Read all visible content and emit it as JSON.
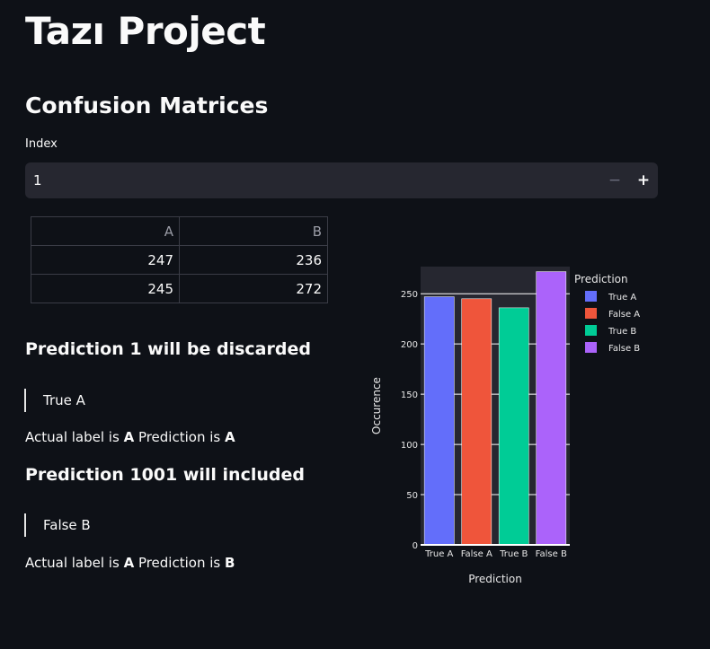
{
  "app": {
    "title": "Tazı Project"
  },
  "section": {
    "title": "Confusion Matrices"
  },
  "index_input": {
    "label": "Index",
    "value": "1",
    "minus": "−",
    "plus": "+"
  },
  "matrix": {
    "columns": [
      "A",
      "B"
    ],
    "rows": [
      [
        "247",
        "236"
      ],
      [
        "245",
        "272"
      ]
    ]
  },
  "predictions": [
    {
      "heading": "Prediction 1 will be discarded",
      "quote": "True A",
      "actual_prefix": "Actual label is ",
      "actual": "A",
      "pred_prefix": " Prediction is ",
      "pred": "A"
    },
    {
      "heading": "Prediction 1001 will included",
      "quote": "False B",
      "actual_prefix": "Actual label is ",
      "actual": "A",
      "pred_prefix": " Prediction is ",
      "pred": "B"
    }
  ],
  "chart_data": {
    "type": "bar",
    "categories": [
      "True A",
      "False A",
      "True B",
      "False B"
    ],
    "values": [
      247,
      245,
      236,
      272
    ],
    "colors": [
      "#636efa",
      "#ef553b",
      "#00cc96",
      "#ab63fa"
    ],
    "xlabel": "Prediction",
    "ylabel": "Occurence",
    "ylim": [
      0,
      277
    ],
    "yticks": [
      0,
      50,
      100,
      150,
      200,
      250
    ],
    "legend_title": "Prediction",
    "legend_placement": "right",
    "grid": true
  }
}
